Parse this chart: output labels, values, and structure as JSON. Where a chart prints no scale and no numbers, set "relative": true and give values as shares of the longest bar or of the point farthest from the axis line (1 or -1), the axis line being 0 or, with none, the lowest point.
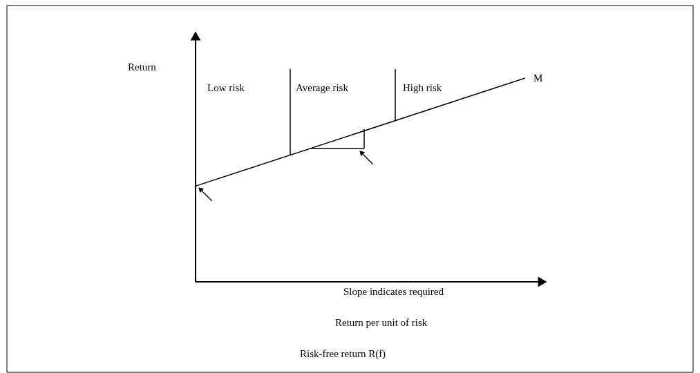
{
  "chart_data": {
    "type": "line",
    "relative": true,
    "ylabel": "Return",
    "categories": [
      null,
      null
    ],
    "series": [
      {
        "name": "M",
        "color": "#000000",
        "values": [
          0.47,
          1
        ]
      }
    ],
    "annotations": [
      "Low risk",
      "Average risk",
      "High risk",
      "Slope indicates required",
      "Return per unit of risk",
      "Risk-free return R(f)"
    ],
    "legend": false,
    "grid": false
  }
}
